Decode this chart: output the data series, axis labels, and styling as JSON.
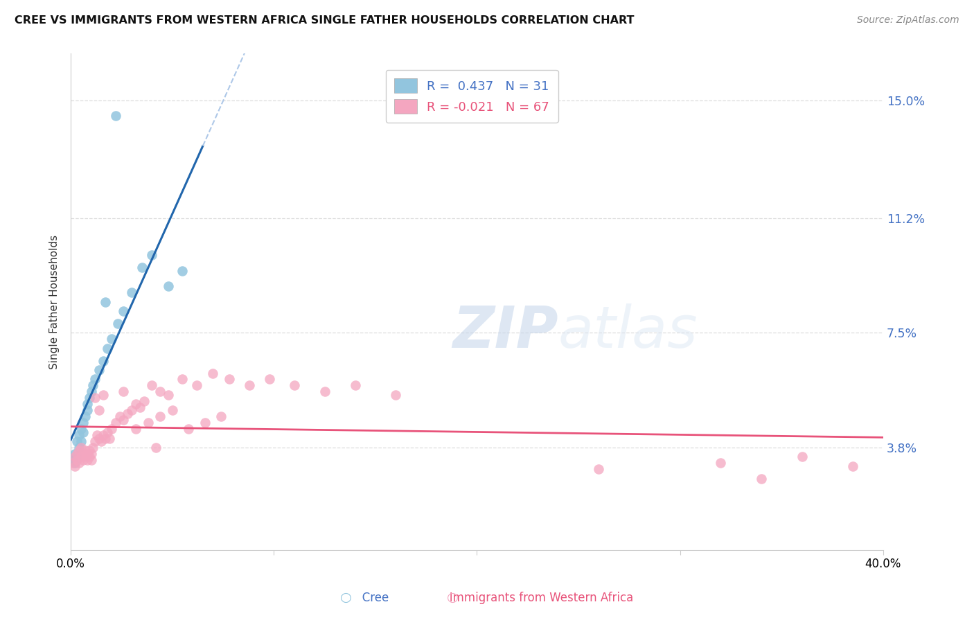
{
  "title": "CREE VS IMMIGRANTS FROM WESTERN AFRICA SINGLE FATHER HOUSEHOLDS CORRELATION CHART",
  "source": "Source: ZipAtlas.com",
  "ylabel": "Single Father Households",
  "ytick_labels": [
    "3.8%",
    "7.5%",
    "11.2%",
    "15.0%"
  ],
  "ytick_values": [
    0.038,
    0.075,
    0.112,
    0.15
  ],
  "xlim": [
    0.0,
    0.4
  ],
  "ylim": [
    0.005,
    0.165
  ],
  "legend_r1": "R =  0.437   N = 31",
  "legend_r2": "R = -0.021   N = 67",
  "cree_color": "#92c5de",
  "immigrant_color": "#f4a6c0",
  "trendline_cree_color": "#2166ac",
  "trendline_immigrant_color": "#e8537a",
  "diagonal_color": "#aec8e8",
  "watermark_zip": "ZIP",
  "watermark_atlas": "atlas",
  "background_color": "#ffffff",
  "cree_x": [
    0.001,
    0.002,
    0.002,
    0.003,
    0.003,
    0.004,
    0.004,
    0.005,
    0.005,
    0.006,
    0.006,
    0.007,
    0.008,
    0.008,
    0.009,
    0.01,
    0.011,
    0.012,
    0.014,
    0.016,
    0.018,
    0.02,
    0.023,
    0.026,
    0.03,
    0.035,
    0.04,
    0.048,
    0.055,
    0.017,
    0.022
  ],
  "cree_y": [
    0.034,
    0.033,
    0.036,
    0.035,
    0.04,
    0.038,
    0.042,
    0.04,
    0.044,
    0.043,
    0.046,
    0.048,
    0.05,
    0.052,
    0.054,
    0.056,
    0.058,
    0.06,
    0.063,
    0.066,
    0.07,
    0.073,
    0.078,
    0.082,
    0.088,
    0.096,
    0.1,
    0.09,
    0.095,
    0.085,
    0.145
  ],
  "imm_x": [
    0.001,
    0.002,
    0.002,
    0.003,
    0.003,
    0.004,
    0.004,
    0.005,
    0.005,
    0.006,
    0.006,
    0.007,
    0.007,
    0.008,
    0.008,
    0.009,
    0.009,
    0.01,
    0.01,
    0.011,
    0.012,
    0.013,
    0.014,
    0.015,
    0.016,
    0.017,
    0.018,
    0.019,
    0.02,
    0.022,
    0.024,
    0.026,
    0.028,
    0.03,
    0.032,
    0.034,
    0.036,
    0.04,
    0.044,
    0.048,
    0.055,
    0.062,
    0.07,
    0.078,
    0.088,
    0.098,
    0.11,
    0.125,
    0.14,
    0.16,
    0.032,
    0.038,
    0.044,
    0.05,
    0.058,
    0.066,
    0.074,
    0.026,
    0.016,
    0.014,
    0.012,
    0.26,
    0.32,
    0.36,
    0.385,
    0.34,
    0.042
  ],
  "imm_y": [
    0.033,
    0.032,
    0.035,
    0.034,
    0.036,
    0.033,
    0.037,
    0.035,
    0.038,
    0.034,
    0.036,
    0.035,
    0.037,
    0.034,
    0.036,
    0.035,
    0.037,
    0.034,
    0.036,
    0.038,
    0.04,
    0.042,
    0.041,
    0.04,
    0.042,
    0.041,
    0.043,
    0.041,
    0.044,
    0.046,
    0.048,
    0.047,
    0.049,
    0.05,
    0.052,
    0.051,
    0.053,
    0.058,
    0.056,
    0.055,
    0.06,
    0.058,
    0.062,
    0.06,
    0.058,
    0.06,
    0.058,
    0.056,
    0.058,
    0.055,
    0.044,
    0.046,
    0.048,
    0.05,
    0.044,
    0.046,
    0.048,
    0.056,
    0.055,
    0.05,
    0.054,
    0.031,
    0.033,
    0.035,
    0.032,
    0.028,
    0.038
  ],
  "grid_color": "#dddddd",
  "spine_color": "#cccccc"
}
